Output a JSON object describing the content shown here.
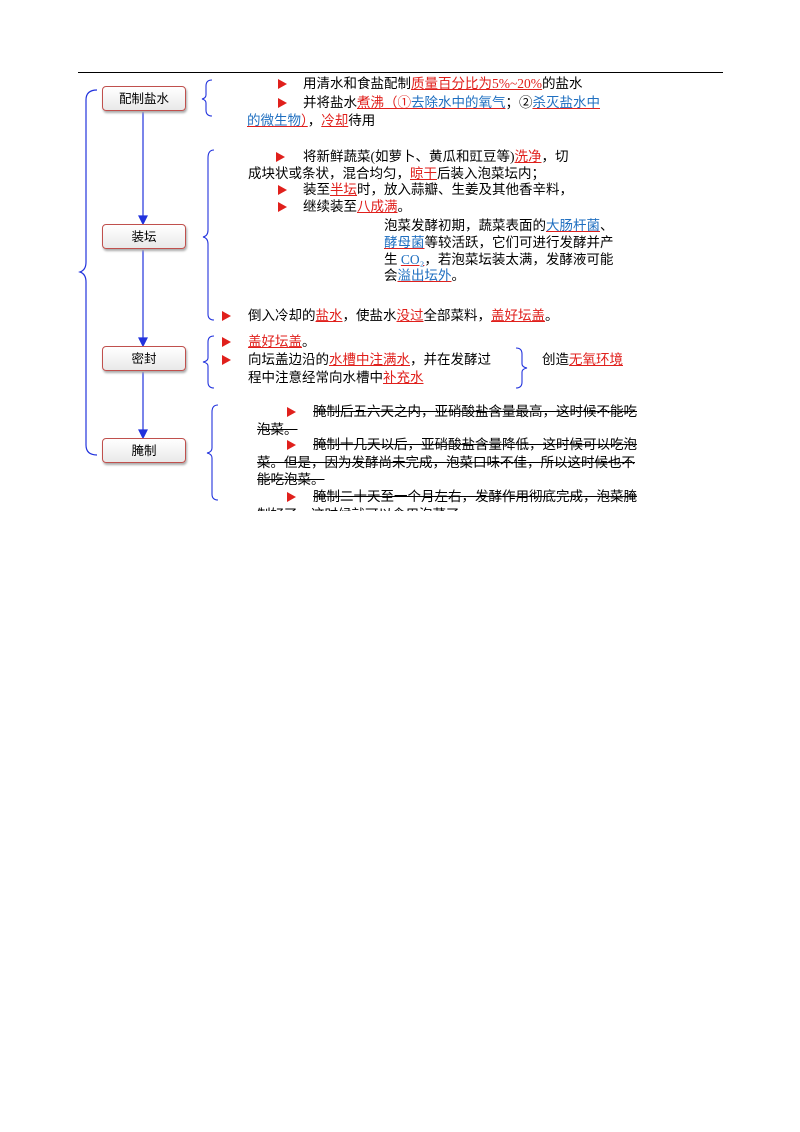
{
  "steps": [
    "配制盐水",
    "装坛",
    "密封",
    "腌制"
  ],
  "lines": [
    {
      "segments": [
        {
          "text": "用清水和食盐配制",
          "style": "plain"
        },
        {
          "text": "质量百分比为5%~20%",
          "style": "red"
        },
        {
          "text": "的盐水",
          "style": "plain"
        }
      ]
    },
    {
      "segments": [
        {
          "text": "并将盐水",
          "style": "plain"
        },
        {
          "text": "煮沸（①",
          "style": "red"
        },
        {
          "text": "去除水中的氧气",
          "style": "blue"
        },
        {
          "text": "；②",
          "style": "plain"
        },
        {
          "text": "杀灭盐水中",
          "style": "blue"
        }
      ]
    },
    {
      "segments": [
        {
          "text": "的微生物",
          "style": "blue"
        },
        {
          "text": "）",
          "style": "red"
        },
        {
          "text": "，",
          "style": "plain"
        },
        {
          "text": "冷却",
          "style": "red"
        },
        {
          "text": "待用",
          "style": "plain"
        }
      ]
    },
    {
      "segments": [
        {
          "text": "将新鲜蔬菜(如萝卜、黄瓜和豇豆等)",
          "style": "plain"
        },
        {
          "text": "洗净",
          "style": "red"
        },
        {
          "text": "，切",
          "style": "plain"
        }
      ]
    },
    {
      "segments": [
        {
          "text": "成块状或条状，混合均匀，",
          "style": "plain"
        },
        {
          "text": "晾干",
          "style": "red"
        },
        {
          "text": "后装入泡菜坛内；",
          "style": "plain"
        }
      ]
    },
    {
      "segments": [
        {
          "text": "装至",
          "style": "plain"
        },
        {
          "text": "半坛",
          "style": "red"
        },
        {
          "text": "时，放入蒜瓣、生姜及其他香辛料，",
          "style": "plain"
        }
      ]
    },
    {
      "segments": [
        {
          "text": "继续装至",
          "style": "plain"
        },
        {
          "text": "八成满",
          "style": "red"
        },
        {
          "text": "。",
          "style": "plain"
        }
      ]
    },
    {
      "segments": [
        {
          "text": "泡菜发酵初期，蔬菜表面的",
          "style": "plain"
        },
        {
          "text": "大肠杆菌",
          "style": "blue"
        },
        {
          "text": "、",
          "style": "plain"
        }
      ]
    },
    {
      "segments": [
        {
          "text": "酵母菌",
          "style": "blue"
        },
        {
          "text": "等较活跃，它们可进行发酵并产",
          "style": "plain"
        }
      ]
    },
    {
      "segments": [
        {
          "text": "生 ",
          "style": "plain"
        },
        {
          "text": "CO₂",
          "style": "blue"
        },
        {
          "text": "，若泡菜坛装太满，发酵液可能",
          "style": "plain"
        }
      ]
    },
    {
      "segments": [
        {
          "text": "会",
          "style": "plain"
        },
        {
          "text": "溢出坛外",
          "style": "blue"
        },
        {
          "text": "。",
          "style": "plain"
        }
      ]
    },
    {
      "segments": [
        {
          "text": "倒入冷却的",
          "style": "plain"
        },
        {
          "text": "盐水",
          "style": "red"
        },
        {
          "text": "，使盐水",
          "style": "plain"
        },
        {
          "text": "没过",
          "style": "red"
        },
        {
          "text": "全部菜料，",
          "style": "plain"
        },
        {
          "text": "盖好坛盖",
          "style": "red"
        },
        {
          "text": "。",
          "style": "plain"
        }
      ]
    },
    {
      "segments": [
        {
          "text": "盖好坛盖",
          "style": "red"
        },
        {
          "text": "。",
          "style": "plain"
        }
      ]
    },
    {
      "segments": [
        {
          "text": "向坛盖边沿的",
          "style": "plain"
        },
        {
          "text": "水槽中注满水",
          "style": "red"
        },
        {
          "text": "，并在发酵过",
          "style": "plain"
        }
      ]
    },
    {
      "segments": [
        {
          "text": "程中注意经常向水槽中",
          "style": "plain"
        },
        {
          "text": "补充水",
          "style": "red"
        }
      ]
    },
    {
      "segments": [
        {
          "text": "创造",
          "style": "plain"
        },
        {
          "text": "无氧环境",
          "style": "red"
        }
      ]
    },
    {
      "segments": [
        {
          "text": "腌制后五六天之内，亚硝酸盐含量最高，这时候不能吃",
          "style": "strike"
        }
      ]
    },
    {
      "segments": [
        {
          "text": "泡菜。",
          "style": "strike"
        }
      ]
    },
    {
      "segments": [
        {
          "text": "腌制十几天以后，亚硝酸盐含量降低，这时候可以吃泡",
          "style": "strike"
        }
      ]
    },
    {
      "segments": [
        {
          "text": "菜。但是，因为发酵尚未完成，泡菜口味不佳，所以这时候也不",
          "style": "strike"
        }
      ]
    },
    {
      "segments": [
        {
          "text": "能吃泡菜。",
          "style": "strike"
        }
      ]
    },
    {
      "segments": [
        {
          "text": "腌制二十天至一个月左右，发酵作用彻底完成，泡菜腌",
          "style": "strike"
        }
      ]
    },
    {
      "segments": [
        {
          "text": "制好了，这时候就可以食用泡菜了。",
          "style": "strike"
        }
      ]
    }
  ]
}
